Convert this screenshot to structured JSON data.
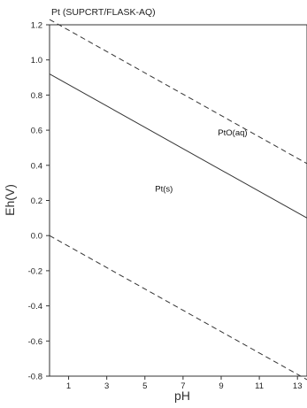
{
  "chart_data": {
    "type": "line",
    "title": "Pt (SUPCRT/FLASK-AQ)",
    "xlabel": "pH",
    "ylabel": "Eh(V)",
    "xlim": [
      0,
      13.5
    ],
    "ylim": [
      -0.8,
      1.2
    ],
    "x_ticks": [
      1,
      3,
      5,
      7,
      9,
      11,
      13
    ],
    "y_ticks": [
      1.2,
      1.0,
      0.8,
      0.6,
      0.4,
      0.2,
      0.0,
      -0.2,
      -0.4,
      -0.6,
      -0.8
    ],
    "y_tick_labels": [
      "1.2",
      "1.0",
      "0.8",
      "0.6",
      "0.4",
      "0.2",
      "0.0",
      "-0.2",
      "-0.4",
      "-0.6",
      "-0.8"
    ],
    "grid": false,
    "series": [
      {
        "style": "dashed",
        "x": [
          0,
          13.5
        ],
        "y": [
          1.23,
          0.41
        ]
      },
      {
        "style": "solid",
        "x": [
          0,
          13.5
        ],
        "y": [
          0.92,
          0.1
        ]
      },
      {
        "style": "dashed",
        "x": [
          0,
          13.5
        ],
        "y": [
          0.0,
          -0.82
        ]
      }
    ],
    "annotations": [
      {
        "text": "PtO(aq)",
        "x": 9.6,
        "y": 0.57
      },
      {
        "text": "Pt(s)",
        "x": 6.0,
        "y": 0.25
      }
    ]
  }
}
